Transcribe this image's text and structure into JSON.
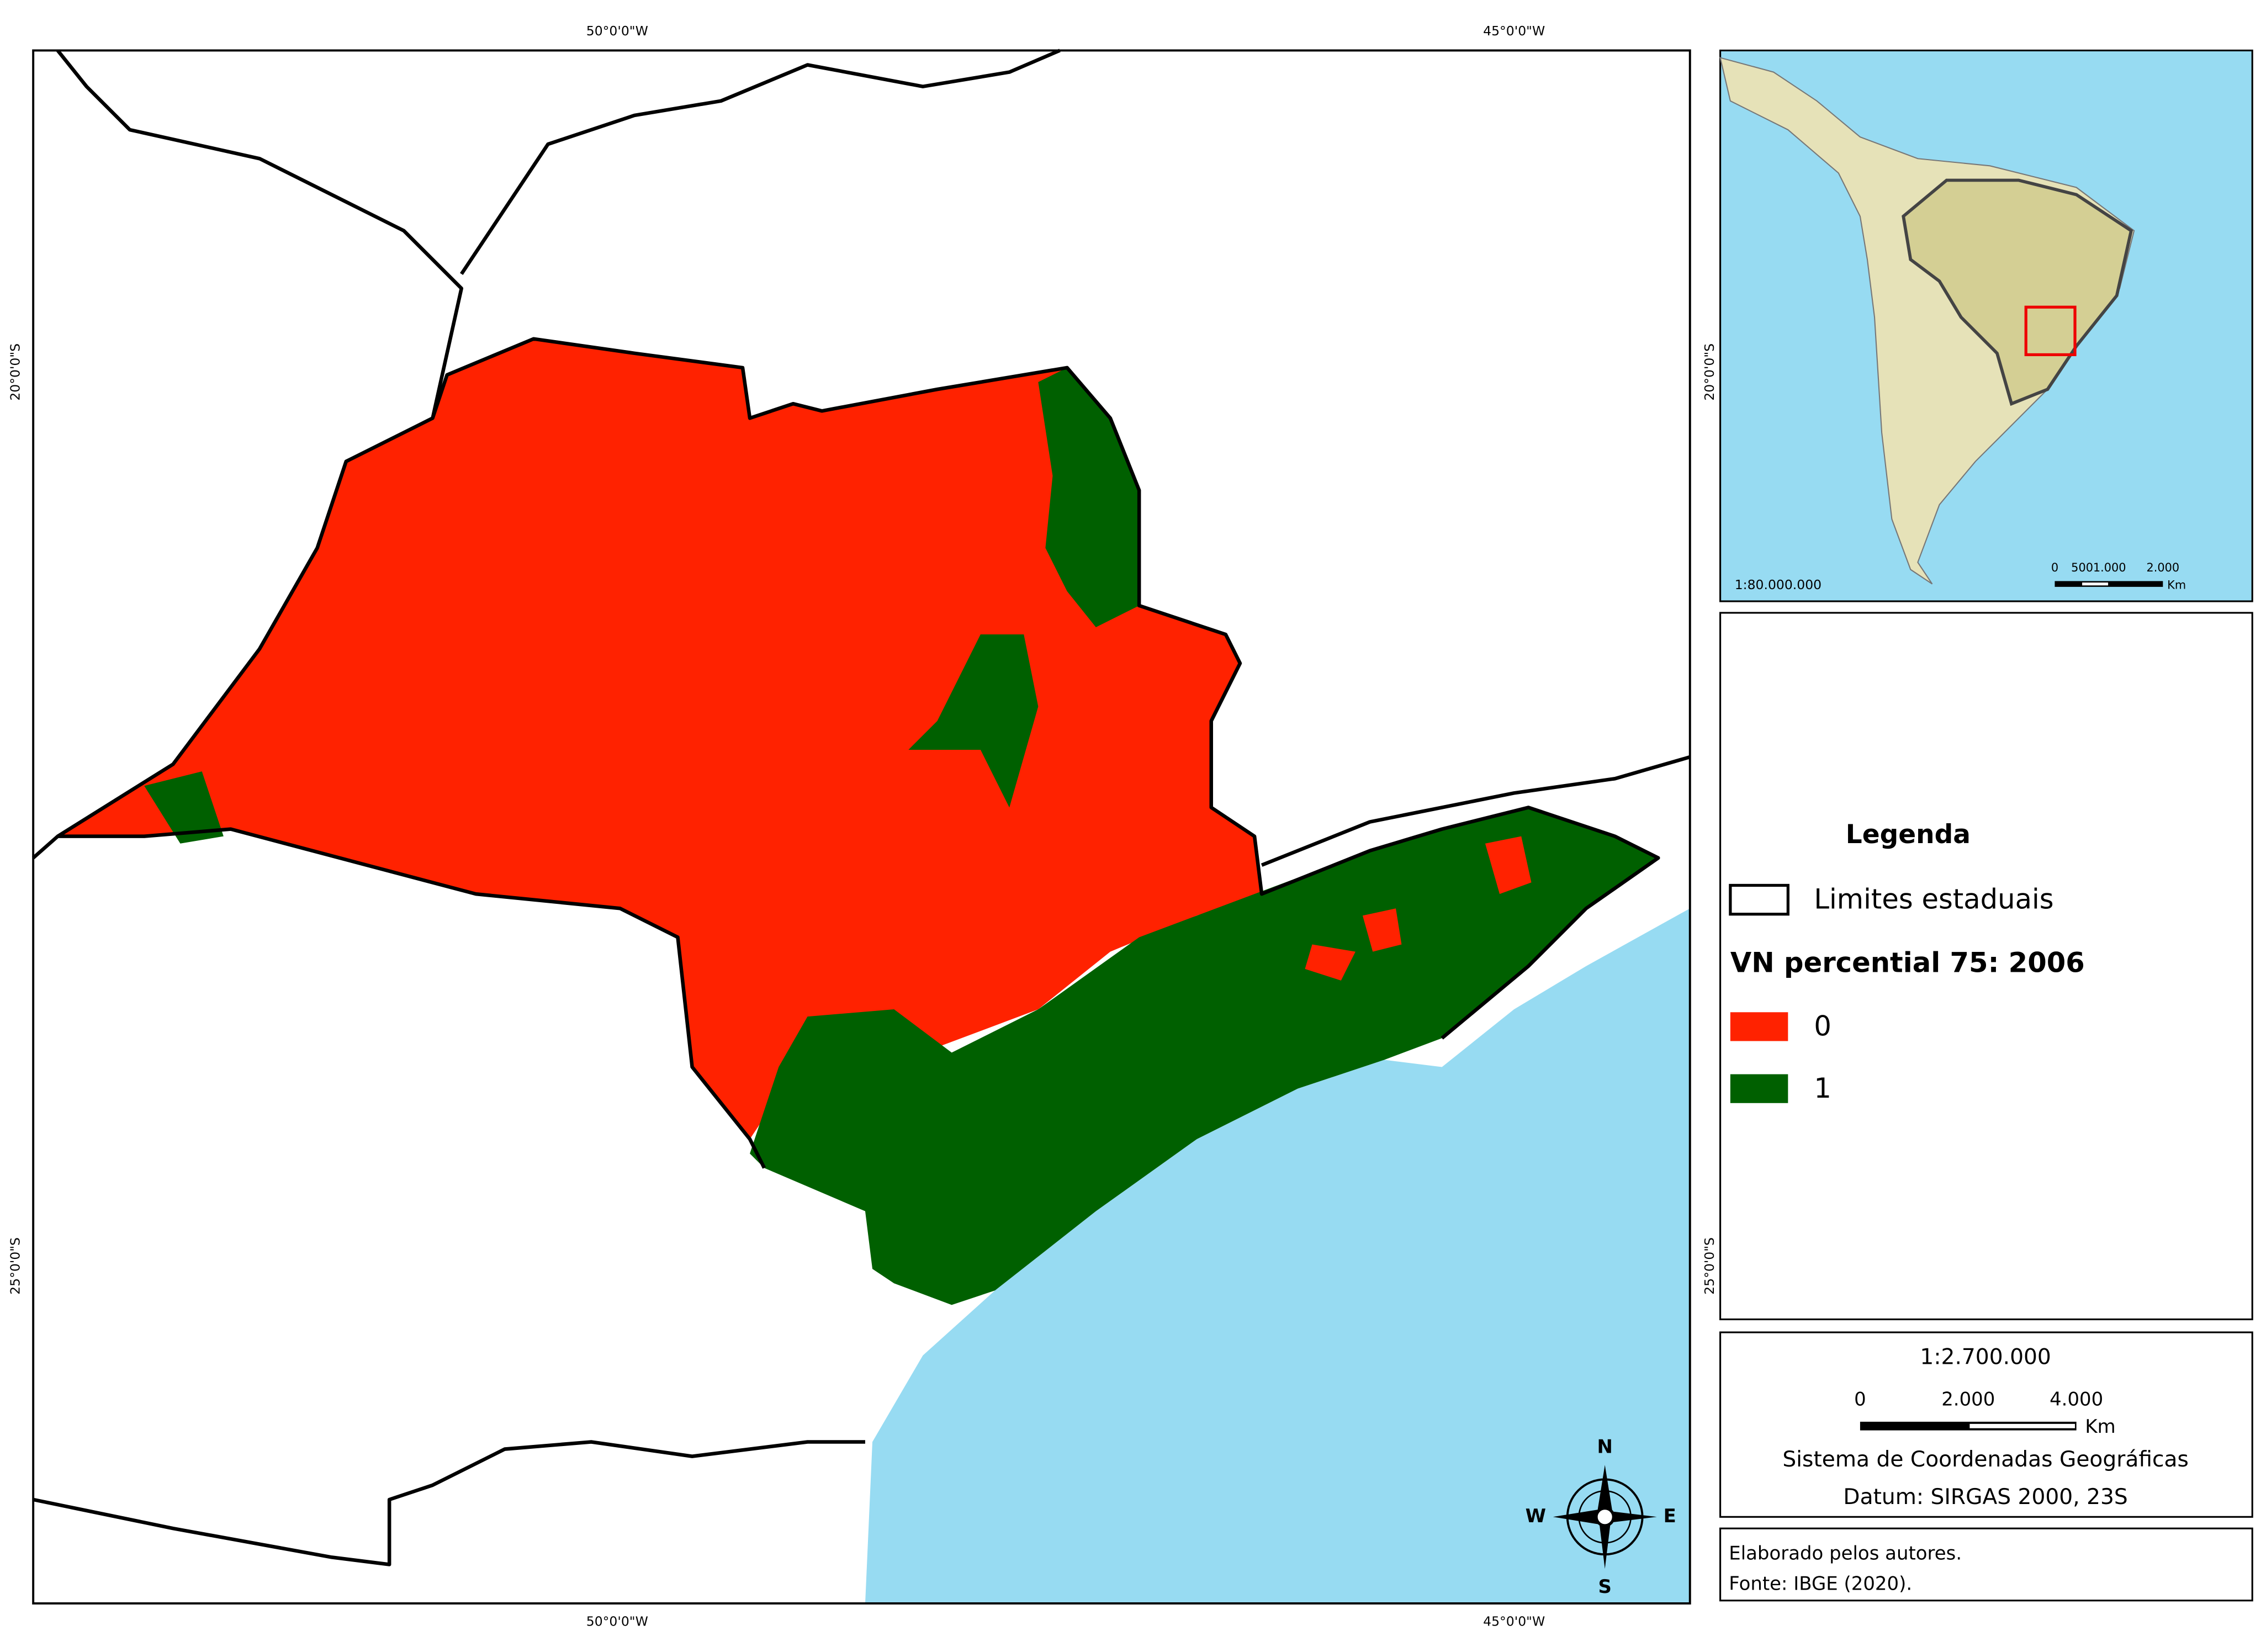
{
  "main_map": {
    "lon_labels": [
      "50°0'0\"W",
      "45°0'0\"W"
    ],
    "lat_labels": [
      "20°0'0\"S",
      "25°0'0\"S"
    ],
    "compass": [
      "N",
      "E",
      "S",
      "W"
    ]
  },
  "inset": {
    "scale": "1:80.000.000",
    "scalebar_ticks": [
      "0",
      "500",
      "1.000",
      "2.000"
    ],
    "unit": "Km"
  },
  "legend": {
    "title": "Legenda",
    "boundary": "Limites estaduais",
    "variable": "VN percential 75: 2006",
    "classes": [
      {
        "label": "0",
        "color": "#ff2200"
      },
      {
        "label": "1",
        "color": "#006000"
      }
    ]
  },
  "scale_box": {
    "scale": "1:2.700.000",
    "ticks": [
      "0",
      "2.000",
      "4.000"
    ],
    "unit": "Km",
    "crs": "Sistema de Coordenadas Geográficas",
    "datum": "Datum: SIRGAS 2000, 23S"
  },
  "credits": [
    "Elaborado pelos autores.",
    "Fonte: IBGE (2020)."
  ]
}
